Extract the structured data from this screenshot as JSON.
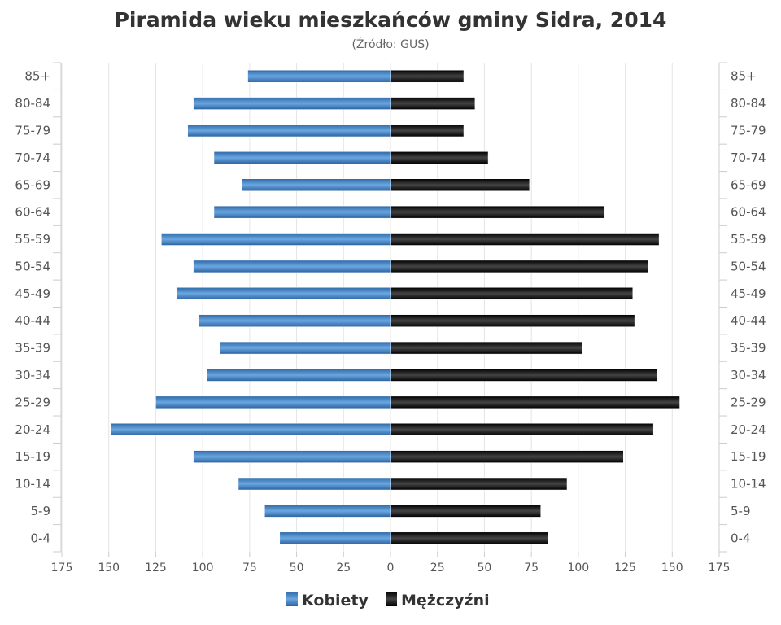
{
  "chart_data": {
    "type": "bar",
    "orientation": "horizontal-pyramid",
    "title": "Piramida wieku mieszkańców gminy Sidra, 2014",
    "subtitle": "(Źródło: GUS)",
    "categories": [
      "85+",
      "80-84",
      "75-79",
      "70-74",
      "65-69",
      "60-64",
      "55-59",
      "50-54",
      "45-49",
      "40-44",
      "35-39",
      "30-34",
      "25-29",
      "20-24",
      "15-19",
      "10-14",
      "5-9",
      "0-4"
    ],
    "series": [
      {
        "name": "Kobiety",
        "color": "#3f7fc4",
        "side": "left",
        "values": [
          76,
          105,
          108,
          94,
          79,
          94,
          122,
          105,
          114,
          102,
          91,
          98,
          125,
          149,
          105,
          81,
          67,
          59
        ]
      },
      {
        "name": "Mężczyźni",
        "color": "#111111",
        "side": "right",
        "values": [
          39,
          45,
          39,
          52,
          74,
          114,
          143,
          137,
          129,
          130,
          102,
          142,
          154,
          140,
          124,
          94,
          80,
          84
        ]
      }
    ],
    "xticks": [
      175,
      150,
      125,
      100,
      75,
      50,
      25,
      0,
      25,
      50,
      75,
      100,
      125,
      150,
      175
    ],
    "xlim": [
      -175,
      175
    ],
    "grid": true,
    "legend": "bottom-center"
  }
}
